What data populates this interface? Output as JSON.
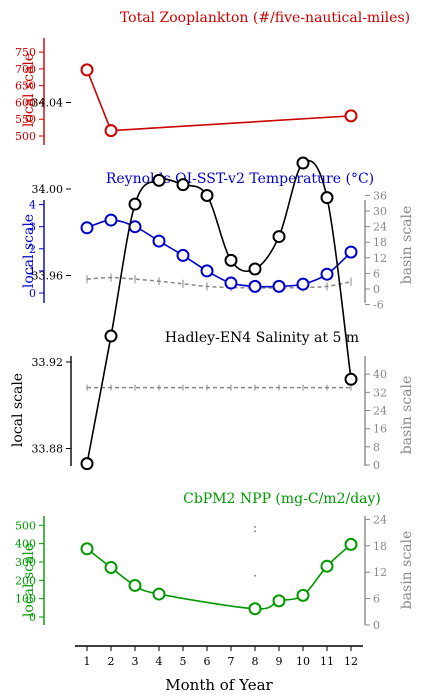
{
  "colors": {
    "zoo": "#cc0000",
    "temp": "#0000cc",
    "sal": "#000000",
    "npp": "#009900",
    "basin": "#888888",
    "axis": "#000000"
  },
  "x_axis": {
    "label": "Month of Year",
    "ticks": [
      "1",
      "2",
      "3",
      "4",
      "5",
      "6",
      "7",
      "8",
      "9",
      "10",
      "11",
      "12"
    ]
  },
  "chart_data": [
    {
      "type": "line",
      "title": "Total Zooplankton (#/five-nautical-miles)",
      "ylabel": "local scale",
      "ylim": [
        470,
        790
      ],
      "yticks": [
        "500",
        "550",
        "600",
        "650",
        "700",
        "750"
      ],
      "x": [
        1,
        2,
        12
      ],
      "series": [
        {
          "values": [
            697,
            516,
            560
          ]
        }
      ]
    },
    {
      "type": "line",
      "title": "Reynolds OI-SST-v2 Temperature (°C)",
      "ylabel": "local scale",
      "y2label": "basin scale",
      "ylim": [
        -0.45,
        4.3
      ],
      "y2lim": [
        -6.5,
        36
      ],
      "yticks": [
        "0",
        "1",
        "2",
        "3",
        "4"
      ],
      "y2ticks": [
        "-6",
        "0",
        "6",
        "12",
        "18",
        "24",
        "30",
        "36"
      ],
      "x": [
        1,
        2,
        3,
        4,
        5,
        6,
        7,
        8,
        9,
        10,
        11,
        12
      ],
      "series": [
        {
          "values": [
            2.95,
            3.3,
            3.0,
            2.35,
            1.7,
            1.0,
            0.45,
            0.3,
            0.3,
            0.4,
            0.85,
            1.85
          ]
        },
        {
          "axis": "basin",
          "values": [
            3.8,
            4.4,
            3.8,
            3.0,
            2.0,
            1.0,
            0.6,
            0.4,
            0.4,
            0.6,
            1.0,
            2.8
          ]
        }
      ]
    },
    {
      "type": "line",
      "title": "Hadley-EN4 Salinity at 5 m",
      "ylabel": "local scale",
      "y2label": "basin scale",
      "ylim": [
        33.85,
        34.04
      ],
      "y2lim": [
        0,
        40
      ],
      "yticks": [
        "33.88",
        "33.92",
        "33.96",
        "34.00",
        "34.04"
      ],
      "y2ticks": [
        "0",
        "8",
        "16",
        "24",
        "32",
        "40"
      ],
      "x": [
        1,
        2,
        3,
        4,
        5,
        6,
        7,
        8,
        9,
        10,
        11,
        12
      ],
      "series": [
        {
          "values": [
            33.873,
            33.932,
            33.993,
            34.004,
            34.002,
            33.997,
            33.967,
            33.963,
            33.978,
            34.012,
            33.996,
            33.912
          ]
        },
        {
          "axis": "basin",
          "values": [
            34.1,
            34.1,
            34.1,
            34.1,
            34.1,
            34.1,
            34.1,
            34.1,
            34.1,
            34.1,
            34.1,
            34.1
          ]
        }
      ]
    },
    {
      "type": "line",
      "title": "CbPM2 NPP (mg-C/m2/day)",
      "ylabel": "local scale",
      "y2label": "basin scale",
      "ylim": [
        -35,
        560
      ],
      "y2lim": [
        0,
        24
      ],
      "yticks": [
        "0",
        "100",
        "200",
        "300",
        "400",
        "500"
      ],
      "y2ticks": [
        "0",
        "6",
        "12",
        "18",
        "24"
      ],
      "x": [
        1,
        2,
        3,
        4,
        8,
        9,
        10,
        11,
        12
      ],
      "series": [
        {
          "values": [
            372,
            270,
            172,
            125,
            45,
            88,
            118,
            277,
            396
          ]
        }
      ],
      "basin_points": [
        {
          "x": 8,
          "y": 22.3
        },
        {
          "x": 8,
          "y": 21.3
        },
        {
          "x": 8,
          "y": 11.2
        }
      ]
    }
  ]
}
